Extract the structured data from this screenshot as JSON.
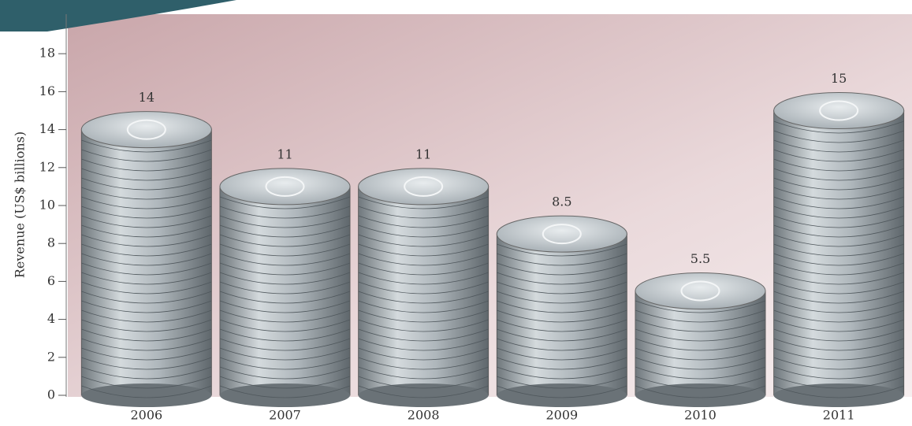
{
  "chart_data": {
    "type": "bar",
    "y_label": "Revenue (US$ billions)",
    "categories": [
      "2006",
      "2007",
      "2008",
      "2009",
      "2010",
      "2011"
    ],
    "values": [
      14,
      11,
      11,
      8.5,
      5.5,
      15
    ],
    "color": "#9aa4ab",
    "ylim": [
      0,
      20
    ],
    "yticks": [
      0,
      2,
      4,
      6,
      8,
      10,
      12,
      14,
      16,
      18
    ],
    "grid": false
  }
}
